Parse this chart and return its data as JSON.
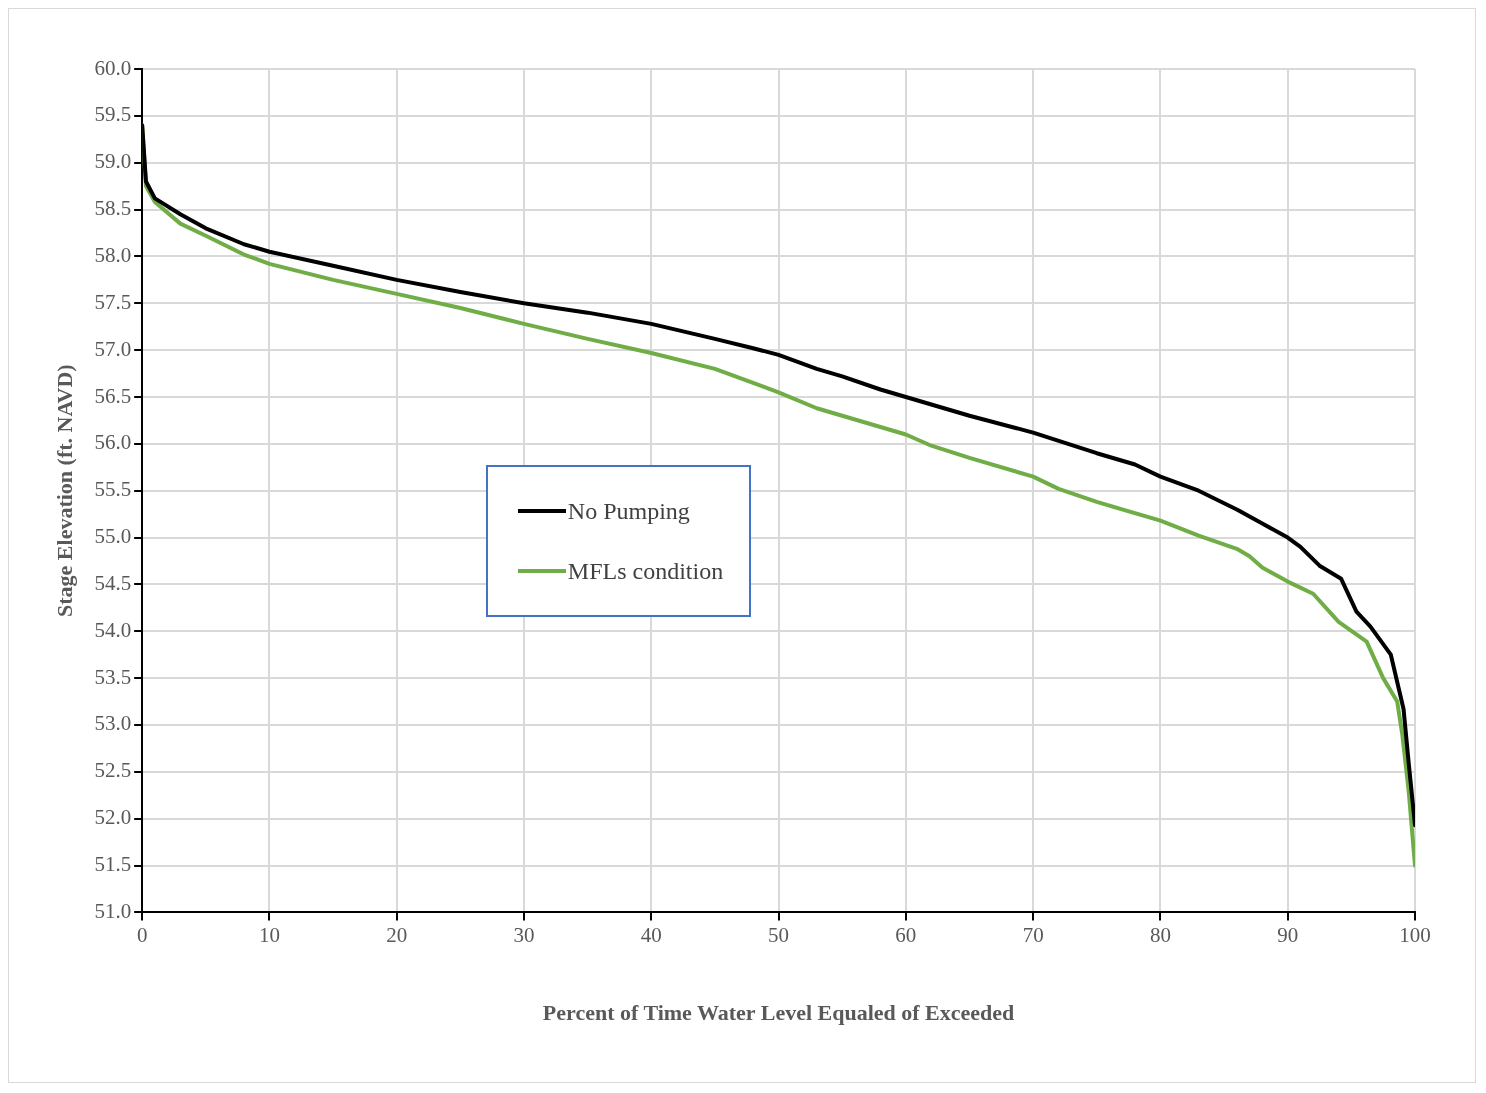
{
  "chart_data": {
    "type": "line",
    "xlabel": "Percent of Time Water Level Equaled of Exceeded",
    "ylabel": "Stage Elevation (ft. NAVD)",
    "xlim": [
      0,
      100
    ],
    "xticks": [
      0,
      10,
      20,
      30,
      40,
      50,
      60,
      70,
      80,
      90,
      100
    ],
    "ylim": [
      51,
      60
    ],
    "yticks": [
      {
        "value": 51,
        "label": "51.0"
      },
      {
        "value": 51.5,
        "label": "51.5"
      },
      {
        "value": 52,
        "label": "52.0"
      },
      {
        "value": 52.5,
        "label": "52.5"
      },
      {
        "value": 53,
        "label": "53.0"
      },
      {
        "value": 53.5,
        "label": "53.5"
      },
      {
        "value": 54,
        "label": "54.0"
      },
      {
        "value": 54.5,
        "label": "54.5"
      },
      {
        "value": 55,
        "label": "55.0"
      },
      {
        "value": 55.5,
        "label": "55.5"
      },
      {
        "value": 56,
        "label": "56.0"
      },
      {
        "value": 56.5,
        "label": "56.5"
      },
      {
        "value": 57,
        "label": "57.0"
      },
      {
        "value": 57.5,
        "label": "57.5"
      },
      {
        "value": 58,
        "label": "58.0"
      },
      {
        "value": 58.5,
        "label": "58.5"
      },
      {
        "value": 59,
        "label": "59.0"
      },
      {
        "value": 59.5,
        "label": "59.5"
      },
      {
        "value": 60,
        "label": "60.0"
      }
    ],
    "grid": true,
    "legend": "center",
    "marker": "none",
    "line_style": "solid",
    "series": [
      {
        "name": "No Pumping",
        "color": "#000000",
        "x": [
          0,
          0.3,
          1,
          3,
          5,
          8,
          10,
          15,
          20,
          25,
          30,
          35,
          40,
          45,
          48,
          50,
          53,
          55,
          58,
          60,
          65,
          70,
          75,
          78,
          80,
          83,
          86,
          88,
          90,
          91,
          92.5,
          94.2,
          95.4,
          96.5,
          98.1,
          99.1,
          99.5,
          100
        ],
        "values": [
          59.4,
          58.8,
          58.62,
          58.45,
          58.3,
          58.13,
          58.05,
          57.9,
          57.75,
          57.62,
          57.5,
          57.4,
          57.28,
          57.12,
          57.02,
          56.95,
          56.8,
          56.72,
          56.58,
          56.5,
          56.3,
          56.12,
          55.9,
          55.78,
          55.65,
          55.5,
          55.3,
          55.15,
          55,
          54.9,
          54.7,
          54.56,
          54.21,
          54.05,
          53.75,
          53.17,
          52.6,
          51.93
        ]
      },
      {
        "name": "MFLs condition",
        "color": "#70ad47",
        "x": [
          0,
          0.3,
          1,
          3,
          5,
          8,
          10,
          15,
          20,
          25,
          30,
          35,
          40,
          45,
          48,
          50,
          53,
          55,
          60,
          62,
          65,
          70,
          72,
          75,
          80,
          83,
          86,
          87,
          88,
          90,
          92,
          94,
          96.2,
          97.5,
          98.6,
          99,
          99.5,
          100
        ],
        "values": [
          59.4,
          58.75,
          58.58,
          58.35,
          58.22,
          58.02,
          57.92,
          57.75,
          57.6,
          57.45,
          57.28,
          57.12,
          56.97,
          56.8,
          56.65,
          56.55,
          56.38,
          56.3,
          56.1,
          55.98,
          55.85,
          55.65,
          55.52,
          55.38,
          55.18,
          55.02,
          54.88,
          54.8,
          54.68,
          54.53,
          54.4,
          54.1,
          53.89,
          53.5,
          53.25,
          52.9,
          52.3,
          51.5
        ]
      }
    ]
  }
}
